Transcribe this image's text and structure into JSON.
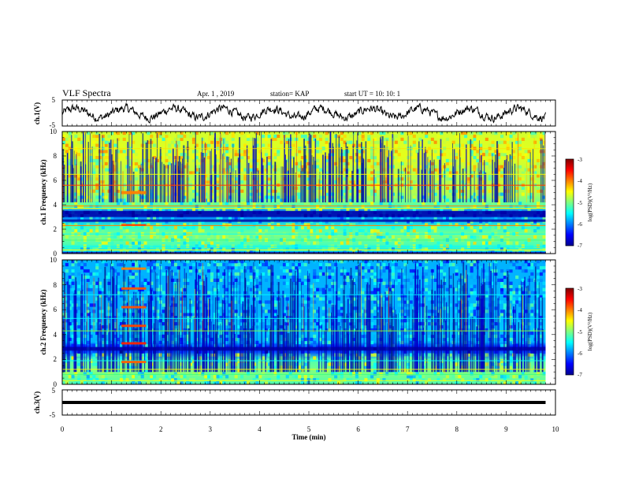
{
  "header": {
    "title": "VLF Spectra",
    "date": "Apr. 1 , 2019",
    "station": "station= KAP",
    "start": "start  UT =  10: 10: 1"
  },
  "chart_data": {
    "type": "heatmap",
    "x_axis": {
      "label": "Time (min)",
      "range": [
        0,
        10
      ],
      "ticks": [
        "0",
        "1",
        "2",
        "3",
        "4",
        "5",
        "6",
        "7",
        "8",
        "9",
        "10"
      ]
    },
    "panels": [
      {
        "name": "ch1-waveform",
        "type": "line",
        "ylabel": "ch.1(V)",
        "ylim": [
          -5,
          5
        ],
        "yticks": [
          "5",
          "-5"
        ],
        "data_note": "noisy waveform oscillating approx. between -3 and 3 V over 0–9.8 min"
      },
      {
        "name": "ch1-spectrogram",
        "type": "heatmap",
        "ylabel": "ch.1 Frequency (kHz)",
        "ylim": [
          0,
          10
        ],
        "yticks": [
          "0",
          "2",
          "4",
          "6",
          "8",
          "10"
        ],
        "x_extent": [
          0,
          9.8
        ],
        "colorbar": {
          "label": "log(PSD)(V²/Hz)",
          "range": [
            -7,
            -3
          ],
          "ticks": [
            "-3",
            "-4",
            "-5",
            "-6",
            "-7"
          ]
        },
        "features": [
          {
            "label": "narrowband lines at ~0.3, 0.6, 1.1, 1.6, 2.3, 3.7, 3.9, 5.6, 6.5 kHz"
          },
          {
            "label": "dark band 3.0–3.5 kHz"
          },
          {
            "label": "bright patch 1.2–1.7 min at 5.0 kHz"
          }
        ]
      },
      {
        "name": "ch2-spectrogram",
        "type": "heatmap",
        "ylabel": "ch.2 Frequency (kHz)",
        "ylim": [
          0,
          10
        ],
        "yticks": [
          "0",
          "2",
          "4",
          "6",
          "8",
          "10"
        ],
        "x_extent": [
          0,
          9.8
        ],
        "colorbar": {
          "label": "log(PSD)(V²/Hz)",
          "range": [
            -7,
            -3
          ],
          "ticks": [
            "-3",
            "-4",
            "-5",
            "-6",
            "-7"
          ]
        },
        "features": [
          {
            "label": "strong lines 1.2–1.7 min at 1.8, 3.3, 4.7, 6.2, 7.7, 9.3 kHz"
          },
          {
            "label": "dark band 2.7–3.0 kHz"
          }
        ]
      },
      {
        "name": "ch3-waveform",
        "type": "line",
        "ylabel": "ch.3(V)",
        "ylim": [
          -5,
          5
        ],
        "yticks": [
          "5",
          "-5"
        ],
        "data_note": "flat thick line at about 0 V over 0–9.8 min"
      }
    ]
  }
}
